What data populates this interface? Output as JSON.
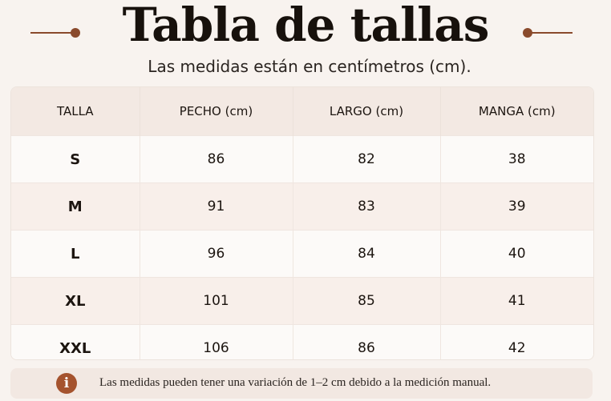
{
  "title": "Tabla de tallas",
  "subtitle": "Las medidas están en centímetros (cm).",
  "table": {
    "headers": [
      "TALLA",
      "PECHO (cm)",
      "LARGO (cm)",
      "MANGA (cm)"
    ],
    "rows": [
      [
        "S",
        "86",
        "82",
        "38"
      ],
      [
        "M",
        "91",
        "83",
        "39"
      ],
      [
        "L",
        "96",
        "84",
        "40"
      ],
      [
        "XL",
        "101",
        "85",
        "41"
      ],
      [
        "XXL",
        "106",
        "86",
        "42"
      ]
    ]
  },
  "note": {
    "icon": "info-icon",
    "icon_glyph": "i",
    "text": "Las medidas pueden tener una variación de 1–2 cm debido a la medición manual."
  },
  "colors": {
    "accent": "#8a4a2c",
    "icon": "#a5532e",
    "background": "#f8f3ef",
    "header": "#f3e9e3"
  }
}
